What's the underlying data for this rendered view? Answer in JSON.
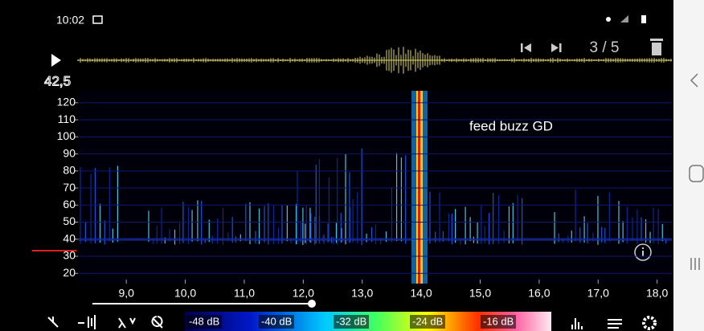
{
  "status_bar": {
    "time": "10:02"
  },
  "player": {
    "position": "3 / 5"
  },
  "spectrogram": {
    "annotation": "feed buzz GD",
    "marker_label": "42,5",
    "ylim": [
      14,
      127
    ],
    "yticks": [
      120,
      110,
      100,
      90,
      80,
      70,
      60,
      50,
      40,
      30,
      20
    ],
    "xlim": [
      8.18,
      18.25
    ],
    "xticks": [
      {
        "value": 9,
        "label": "9,0"
      },
      {
        "value": 10,
        "label": "10,0"
      },
      {
        "value": 11,
        "label": "11,0"
      },
      {
        "value": 12,
        "label": "12,0"
      },
      {
        "value": 13,
        "label": "13,0"
      },
      {
        "value": 14,
        "label": "14,0"
      },
      {
        "value": 15,
        "label": "15,0"
      },
      {
        "value": 16,
        "label": "16,0"
      },
      {
        "value": 17,
        "label": "17,0"
      },
      {
        "value": 18,
        "label": "18,0"
      }
    ]
  },
  "color_scale": {
    "labels": [
      "-48 dB",
      "-40 dB",
      "-32 dB",
      "-24 dB",
      "-16 dB"
    ]
  }
}
